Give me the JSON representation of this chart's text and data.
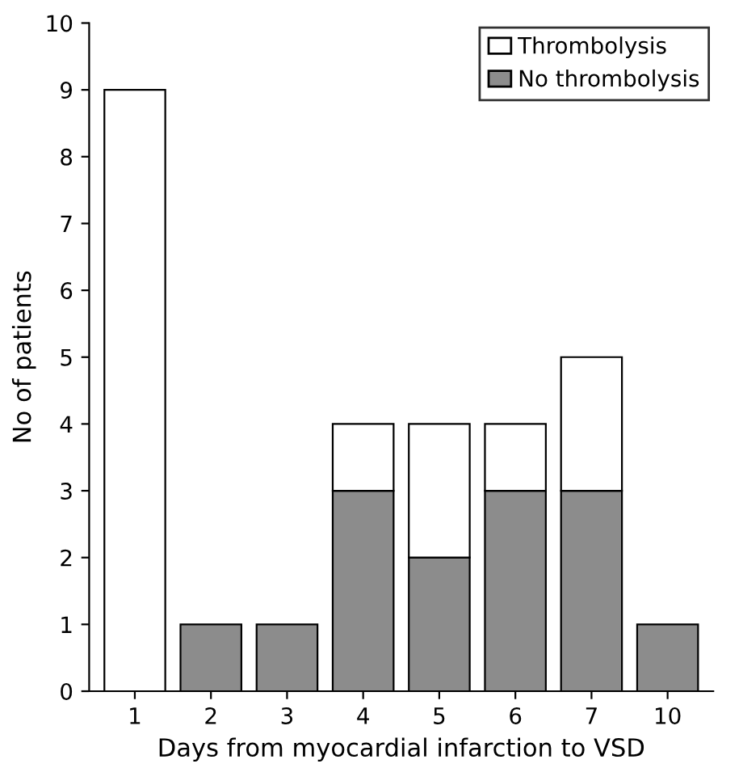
{
  "chart_data": {
    "type": "bar",
    "stacked": true,
    "xlabel": "Days from myocardial infarction to VSD",
    "ylabel": "No of patients",
    "categories": [
      "1",
      "2",
      "3",
      "4",
      "5",
      "6",
      "7",
      "10"
    ],
    "series": [
      {
        "name": "No thrombolysis",
        "color": "#8c8c8c",
        "values": [
          0,
          1,
          1,
          3,
          2,
          3,
          3,
          1
        ]
      },
      {
        "name": "Thrombolysis",
        "color": "#ffffff",
        "values": [
          9,
          0,
          0,
          1,
          2,
          1,
          2,
          0
        ]
      }
    ],
    "ylim": [
      0,
      10
    ],
    "yticks": [
      0,
      1,
      2,
      3,
      4,
      5,
      6,
      7,
      8,
      9,
      10
    ],
    "grid": false,
    "legend": "top right"
  }
}
